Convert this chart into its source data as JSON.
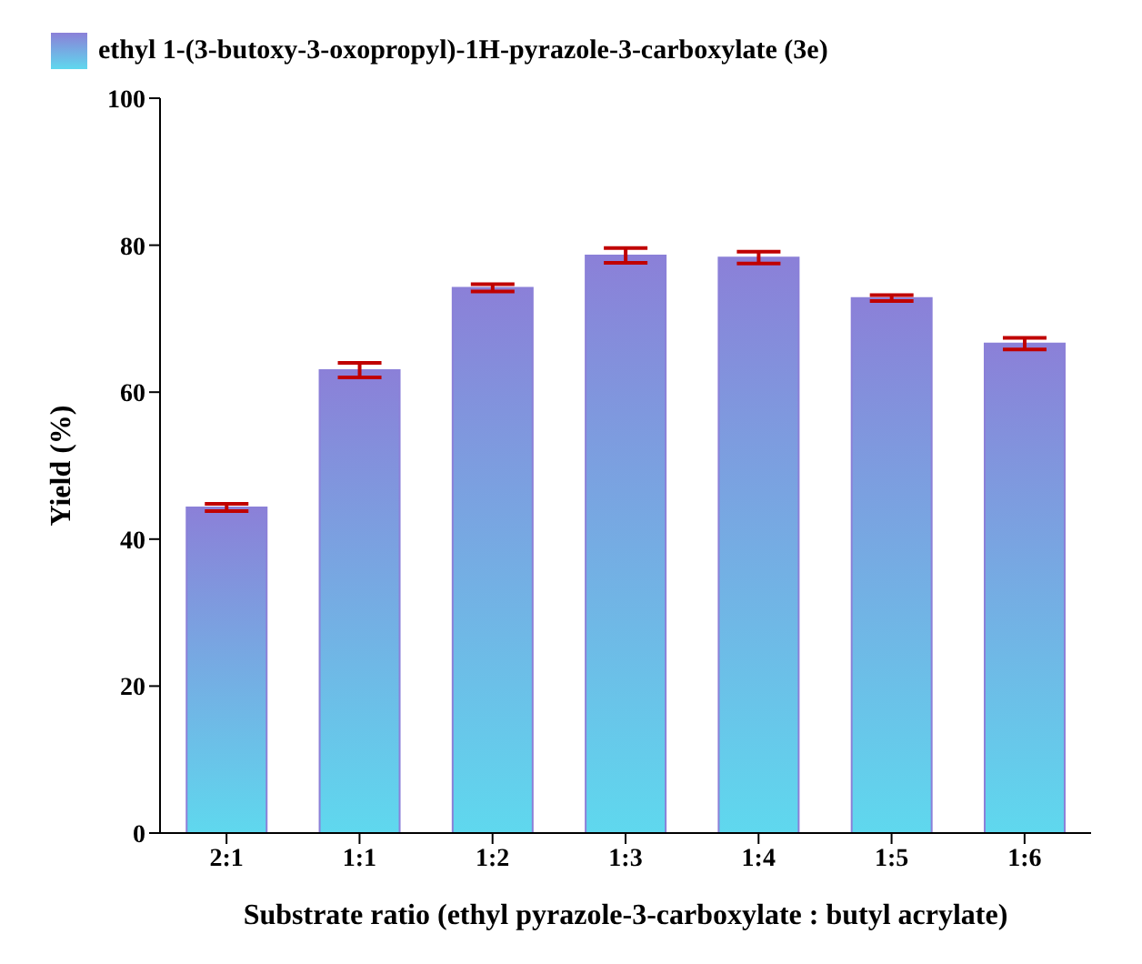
{
  "chart_data": {
    "type": "bar",
    "categories": [
      "2:1",
      "1:1",
      "1:2",
      "1:3",
      "1:4",
      "1:5",
      "1:6"
    ],
    "series": [
      {
        "name": "ethyl 1-(3-butoxy-3-oxopropyl)-1H-pyrazole-3-carboxylate (3e)",
        "color": "#8b80d8",
        "values": [
          44.3,
          63,
          74.2,
          78.6,
          78.3,
          72.8,
          66.6
        ],
        "errors": [
          0.5,
          1,
          0.5,
          1,
          0.8,
          0.4,
          0.8
        ]
      }
    ],
    "xlabel": "Substrate ratio (ethyl pyrazole-3-carboxylate : butyl acrylate)",
    "ylabel": "Yield (%)",
    "ylim": [
      0,
      100
    ],
    "yticks": [
      0,
      20,
      40,
      60,
      80,
      100
    ],
    "grid": false,
    "legend": "top left"
  }
}
